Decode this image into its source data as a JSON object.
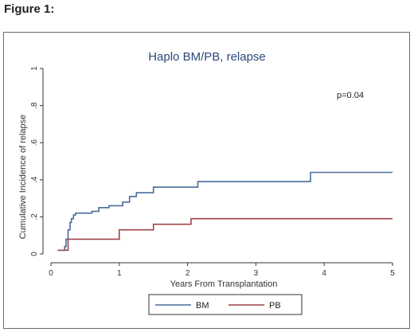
{
  "figure_label": "Figure 1:",
  "chart_data": {
    "type": "line",
    "step": true,
    "title": "Haplo BM/PB, relapse",
    "xlabel": "Years From Transplantation",
    "ylabel": "Cumulative Incidence of relapse",
    "xlim": [
      0,
      5
    ],
    "ylim": [
      0,
      1
    ],
    "xticks": [
      0,
      1,
      2,
      3,
      4,
      5
    ],
    "xtick_labels": [
      "0",
      "1",
      "2",
      "3",
      "4",
      "5"
    ],
    "yticks": [
      0,
      0.2,
      0.4,
      0.6,
      0.8,
      1
    ],
    "ytick_labels": [
      "0",
      ".2",
      ".4",
      ".6",
      ".8",
      "1"
    ],
    "grid": false,
    "legend_position": "bottom",
    "annotation": "p=0.04",
    "series": [
      {
        "name": "BM",
        "color": "#4a6d9c",
        "x": [
          0.1,
          0.2,
          0.22,
          0.25,
          0.28,
          0.3,
          0.33,
          0.36,
          0.6,
          0.7,
          0.85,
          1.05,
          1.15,
          1.25,
          1.5,
          2.15,
          3.8,
          5.0
        ],
        "y": [
          0.02,
          0.04,
          0.08,
          0.13,
          0.17,
          0.19,
          0.21,
          0.22,
          0.23,
          0.25,
          0.26,
          0.28,
          0.31,
          0.33,
          0.36,
          0.39,
          0.44,
          0.44
        ]
      },
      {
        "name": "PB",
        "color": "#a0434a",
        "x": [
          0.1,
          0.25,
          1.0,
          1.5,
          2.05,
          5.0
        ],
        "y": [
          0.02,
          0.08,
          0.13,
          0.16,
          0.19,
          0.19
        ]
      }
    ]
  }
}
